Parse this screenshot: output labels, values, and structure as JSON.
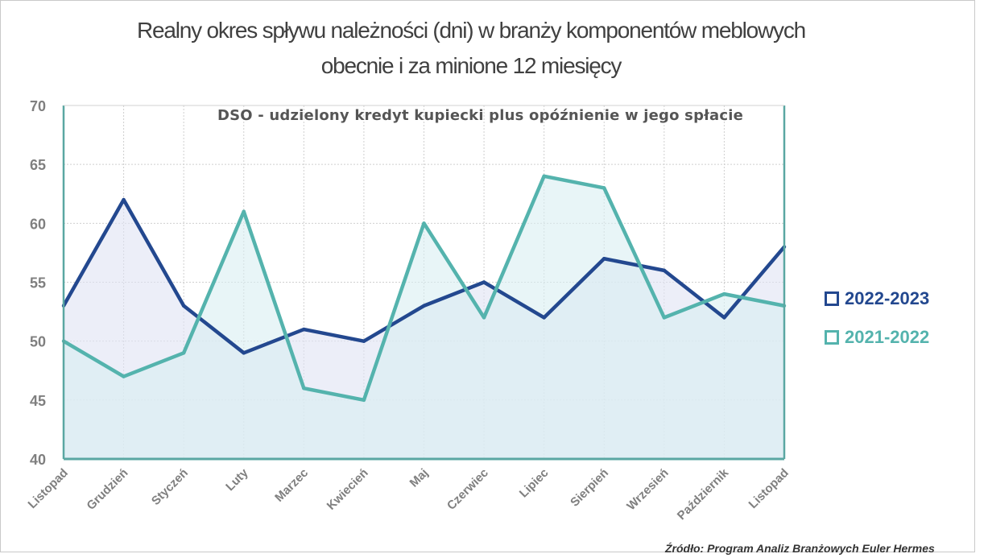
{
  "chart_data": {
    "type": "area",
    "title_line1": "Realny okres spływu należności (dni) w branży komponentów meblowych",
    "title_line2": "obecnie i za minione 12 miesięcy",
    "subtitle": "DSO - udzielony kredyt kupiecki plus opóźnienie w jego spłacie",
    "source": "Źródło: Program Analiz Branżowych Euler Hermes",
    "ylim": [
      40,
      70
    ],
    "yticks": [
      40,
      45,
      50,
      55,
      60,
      65,
      70
    ],
    "grid": true,
    "legend_position": "right",
    "categories": [
      "Listopad",
      "Grudzień",
      "Styczeń",
      "Luty",
      "Marzec",
      "Kwiecień",
      "Maj",
      "Czerwiec",
      "Lipiec",
      "Sierpień",
      "Wrzesień",
      "Październik",
      "Listopad"
    ],
    "series": [
      {
        "name": "2022-2023",
        "color": "#23488f",
        "fill": "#dfe3f3",
        "values": [
          53,
          62,
          53,
          49,
          51,
          50,
          53,
          55,
          52,
          57,
          56,
          52,
          58
        ]
      },
      {
        "name": "2021-2022",
        "color": "#54b3ad",
        "fill": "#d9eff1",
        "values": [
          50,
          47,
          49,
          61,
          46,
          45,
          60,
          52,
          64,
          63,
          52,
          54,
          53
        ]
      }
    ]
  }
}
